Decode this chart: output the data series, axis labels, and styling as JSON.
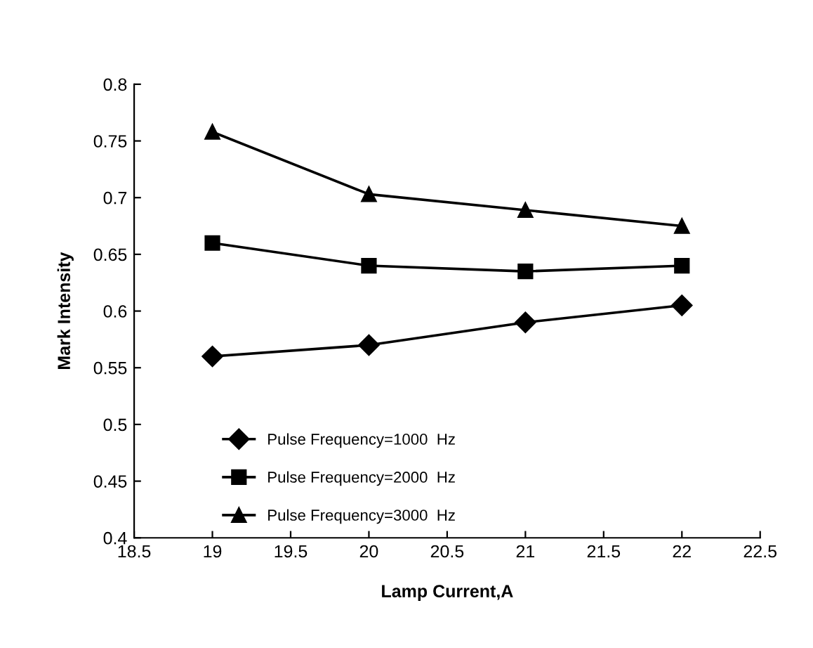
{
  "chart_data": {
    "type": "line",
    "xlabel": "Lamp Current,A",
    "ylabel": "Mark Intensity",
    "x": [
      19,
      20,
      21,
      22
    ],
    "series": [
      {
        "name": "Pulse Frequency=1000  Hz",
        "color": "#000000",
        "marker": "diamond",
        "values": [
          0.56,
          0.57,
          0.59,
          0.605
        ]
      },
      {
        "name": "Pulse Frequency=2000  Hz",
        "color": "#000000",
        "marker": "square",
        "values": [
          0.66,
          0.64,
          0.635,
          0.64
        ]
      },
      {
        "name": "Pulse Frequency=3000  Hz",
        "color": "#000000",
        "marker": "triangle",
        "values": [
          0.758,
          0.703,
          0.689,
          0.675
        ]
      }
    ],
    "xlim": [
      18.5,
      22.5
    ],
    "xticks": [
      18.5,
      19,
      19.5,
      20,
      20.5,
      21,
      21.5,
      22,
      22.5
    ],
    "ylim": [
      0.4,
      0.8
    ],
    "yticks": [
      0.4,
      0.45,
      0.5,
      0.55,
      0.6,
      0.65,
      0.7,
      0.75,
      0.8
    ],
    "legend": "bottom left",
    "grid": false
  }
}
